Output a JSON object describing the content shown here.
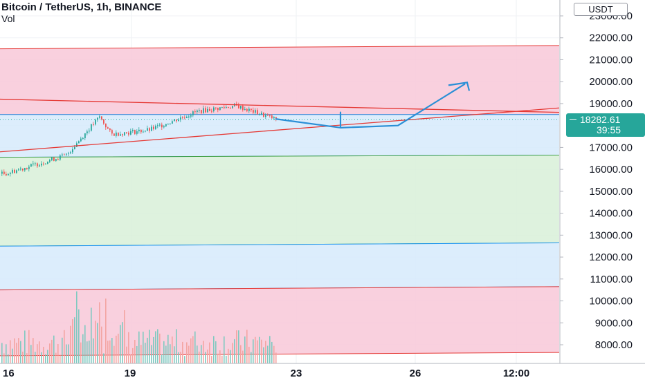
{
  "header": {
    "title": "Bitcoin / TetherUS, 1h, BINANCE",
    "vol_label": "Vol"
  },
  "price_axis": {
    "unit": "USDT",
    "ticks": [
      "23000.00",
      "22000.00",
      "21000.00",
      "20000.00",
      "19000.00",
      "18000.00",
      "17000.00",
      "16000.00",
      "15000.00",
      "14000.00",
      "13000.00",
      "12000.00",
      "11000.00",
      "10000.00",
      "9000.00",
      "8000.00"
    ],
    "last_price": "18282.61",
    "countdown": "39:55"
  },
  "time_axis": {
    "ticks": [
      "16",
      "19",
      "23",
      "26",
      "12:00"
    ]
  },
  "colors": {
    "up": "#26a69a",
    "down": "#ef5350",
    "pink_zone": "#f8c8d8",
    "blue_zone": "#d6eafc",
    "green_zone": "#d8f0d8",
    "red_line": "#e53935",
    "blue_line": "#2196f3",
    "green_line": "#43a047",
    "projection": "#2a8fd6"
  },
  "chart_data": {
    "type": "candlestick",
    "symbol": "Bitcoin / TetherUS",
    "interval": "1h",
    "exchange": "BINANCE",
    "price_range": [
      7300,
      23300
    ],
    "x_ticks": [
      "16",
      "19",
      "23",
      "26",
      "12:00"
    ],
    "close_path": [
      {
        "x": "16",
        "y": 15800
      },
      {
        "x": "17",
        "y": 16650
      },
      {
        "x": "18",
        "y": 18400
      },
      {
        "x": "18",
        "y": 17600
      },
      {
        "x": "19",
        "y": 17800
      },
      {
        "x": "20",
        "y": 18650
      },
      {
        "x": "21",
        "y": 18900
      },
      {
        "x": "22",
        "y": 18282.61
      }
    ],
    "last_price": 18282.61,
    "zones": [
      {
        "color": "pink",
        "top_start": 21500,
        "top_end": 21650,
        "bottom_start": 18500,
        "bottom_end": 18500
      },
      {
        "color": "blue",
        "top_start": 18500,
        "top_end": 18500,
        "bottom_start": 16550,
        "bottom_end": 16650
      },
      {
        "color": "green",
        "top_start": 16550,
        "top_end": 16650,
        "bottom_start": 12500,
        "bottom_end": 12650
      },
      {
        "color": "blue",
        "top_start": 12500,
        "top_end": 12650,
        "bottom_start": 10500,
        "bottom_end": 10650
      },
      {
        "color": "pink",
        "top_start": 10500,
        "top_end": 10650,
        "bottom_start": 7500,
        "bottom_end": 7650
      }
    ],
    "trendlines": [
      {
        "from": {
          "x": "16",
          "y": 19200
        },
        "to": {
          "x": "12:00",
          "y": 18600
        }
      },
      {
        "from": {
          "x": "16",
          "y": 16800
        },
        "to": {
          "x": "12:00",
          "y": 18800
        }
      }
    ],
    "projection": [
      18300,
      17900,
      18600,
      18000,
      18300,
      19900
    ]
  }
}
